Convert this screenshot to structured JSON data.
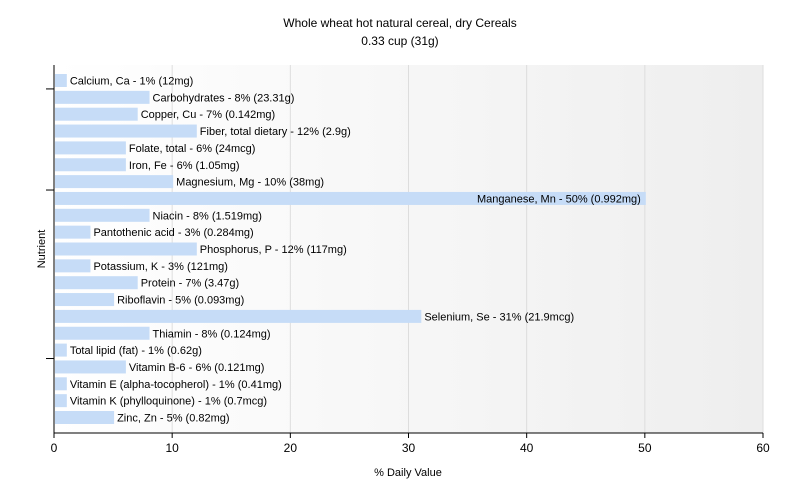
{
  "chart_data": {
    "type": "bar",
    "orientation": "horizontal",
    "title": "Whole wheat hot natural cereal, dry Cereals",
    "subtitle": "0.33 cup (31g)",
    "xlabel": "% Daily Value",
    "ylabel": "Nutrient",
    "xlim": [
      0,
      60
    ],
    "xticks": [
      0,
      10,
      20,
      30,
      40,
      50,
      60
    ],
    "grid": true,
    "bar_color": "#c6dcf7",
    "categories": [
      "Calcium, Ca",
      "Carbohydrates",
      "Copper, Cu",
      "Fiber, total dietary",
      "Folate, total",
      "Iron, Fe",
      "Magnesium, Mg",
      "Manganese, Mn",
      "Niacin",
      "Pantothenic acid",
      "Phosphorus, P",
      "Potassium, K",
      "Protein",
      "Riboflavin",
      "Selenium, Se",
      "Thiamin",
      "Total lipid (fat)",
      "Vitamin B-6",
      "Vitamin E (alpha-tocopherol)",
      "Vitamin K (phylloquinone)",
      "Zinc, Zn"
    ],
    "values": [
      1,
      8,
      7,
      12,
      6,
      6,
      10,
      50,
      8,
      3,
      12,
      3,
      7,
      5,
      31,
      8,
      1,
      6,
      1,
      1,
      5
    ],
    "labels": [
      "Calcium, Ca - 1% (12mg)",
      "Carbohydrates - 8% (23.31g)",
      "Copper, Cu - 7% (0.142mg)",
      "Fiber, total dietary - 12% (2.9g)",
      "Folate, total - 6% (24mcg)",
      "Iron, Fe - 6% (1.05mg)",
      "Magnesium, Mg - 10% (38mg)",
      "Manganese, Mn - 50% (0.992mg)",
      "Niacin - 8% (1.519mg)",
      "Pantothenic acid - 3% (0.284mg)",
      "Phosphorus, P - 12% (117mg)",
      "Potassium, K - 3% (121mg)",
      "Protein - 7% (3.47g)",
      "Riboflavin - 5% (0.093mg)",
      "Selenium, Se - 31% (21.9mcg)",
      "Thiamin - 8% (0.124mg)",
      "Total lipid (fat) - 1% (0.62g)",
      "Vitamin B-6 - 6% (0.121mg)",
      "Vitamin E (alpha-tocopherol) - 1% (0.41mg)",
      "Vitamin K (phylloquinone) - 1% (0.7mcg)",
      "Zinc, Zn - 5% (0.82mg)"
    ]
  }
}
